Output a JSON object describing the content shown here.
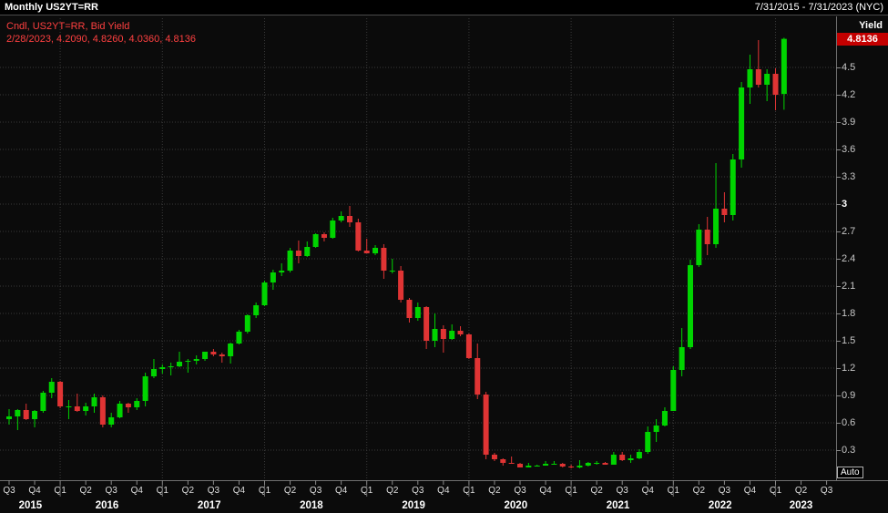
{
  "title_bar": {
    "title": "Monthly US2YT=RR",
    "date_range": "7/31/2015 - 7/31/2023 (NYC)"
  },
  "legend": {
    "line1": "Cndl, US2YT=RR, Bid Yield",
    "line2": "2/28/2023, 4.2090, 4.8260, 4.0360, 4.8136"
  },
  "y_axis": {
    "label": "Yield",
    "last_price": "4.8136",
    "ticks": [
      4.5,
      4.2,
      3.9,
      3.6,
      3.3,
      3,
      2.7,
      2.4,
      2.1,
      1.8,
      1.5,
      1.2,
      0.9,
      0.6,
      0.3
    ],
    "auto_label": "Auto"
  },
  "x_axis": {
    "quarter_labels": [
      "Q3",
      "Q4",
      "Q1",
      "Q2",
      "Q3",
      "Q4",
      "Q1",
      "Q2",
      "Q3",
      "Q4",
      "Q1",
      "Q2",
      "Q3",
      "Q4",
      "Q1",
      "Q2",
      "Q3",
      "Q4",
      "Q1",
      "Q2",
      "Q3",
      "Q4",
      "Q1",
      "Q2",
      "Q3",
      "Q4",
      "Q1",
      "Q2",
      "Q3",
      "Q4",
      "Q1",
      "Q2",
      "Q3"
    ],
    "years": [
      "2015",
      "2016",
      "2017",
      "2018",
      "2019",
      "2020",
      "2021",
      "2022",
      "2023"
    ]
  },
  "colors": {
    "background": "#0b0b0b",
    "topbar_bg": "#000000",
    "up": "#00d400",
    "down": "#e03434",
    "legend_text": "#ff4040",
    "grid": "#3a3a3a",
    "axis_line": "#707070",
    "tick_color": "#8a8a8a",
    "badge_bg": "#c40000",
    "quarter_text": "#dddddd",
    "year_text": "#ffffff"
  },
  "chart_data": {
    "type": "candlestick",
    "title": "Monthly US2YT=RR",
    "symbol": "US2YT=RR",
    "field": "Bid Yield",
    "interval": "monthly",
    "start_month": "2015-07",
    "end_month": "2023-02",
    "axis_end_month": "2023-09",
    "ylabel": "Yield",
    "ylim_visible": [
      0.05,
      4.95
    ],
    "last_candle": {
      "date": "2/28/2023",
      "open": 4.209,
      "high": 4.826,
      "low": 4.036,
      "close": 4.8136
    },
    "ohlc": [
      [
        0.64,
        0.75,
        0.58,
        0.67
      ],
      [
        0.67,
        0.75,
        0.52,
        0.74
      ],
      [
        0.74,
        0.81,
        0.63,
        0.64
      ],
      [
        0.64,
        0.74,
        0.55,
        0.73
      ],
      [
        0.73,
        0.95,
        0.71,
        0.93
      ],
      [
        0.93,
        1.09,
        0.87,
        1.05
      ],
      [
        1.05,
        1.06,
        0.76,
        0.78
      ],
      [
        0.78,
        0.85,
        0.64,
        0.78
      ],
      [
        0.78,
        0.92,
        0.72,
        0.73
      ],
      [
        0.73,
        0.82,
        0.68,
        0.78
      ],
      [
        0.78,
        0.92,
        0.71,
        0.88
      ],
      [
        0.88,
        0.9,
        0.55,
        0.58
      ],
      [
        0.58,
        0.71,
        0.55,
        0.66
      ],
      [
        0.66,
        0.84,
        0.65,
        0.81
      ],
      [
        0.81,
        0.82,
        0.71,
        0.77
      ],
      [
        0.77,
        0.87,
        0.74,
        0.84
      ],
      [
        0.84,
        1.15,
        0.78,
        1.11
      ],
      [
        1.11,
        1.3,
        1.09,
        1.19
      ],
      [
        1.19,
        1.24,
        1.14,
        1.21
      ],
      [
        1.21,
        1.26,
        1.12,
        1.22
      ],
      [
        1.22,
        1.38,
        1.21,
        1.27
      ],
      [
        1.27,
        1.3,
        1.15,
        1.28
      ],
      [
        1.28,
        1.34,
        1.24,
        1.3
      ],
      [
        1.3,
        1.38,
        1.28,
        1.38
      ],
      [
        1.38,
        1.41,
        1.33,
        1.35
      ],
      [
        1.35,
        1.37,
        1.26,
        1.33
      ],
      [
        1.33,
        1.48,
        1.25,
        1.47
      ],
      [
        1.47,
        1.62,
        1.46,
        1.6
      ],
      [
        1.6,
        1.79,
        1.58,
        1.78
      ],
      [
        1.78,
        1.92,
        1.75,
        1.89
      ],
      [
        1.89,
        2.16,
        1.88,
        2.14
      ],
      [
        2.14,
        2.28,
        2.06,
        2.25
      ],
      [
        2.25,
        2.35,
        2.21,
        2.27
      ],
      [
        2.27,
        2.52,
        2.25,
        2.49
      ],
      [
        2.49,
        2.6,
        2.35,
        2.43
      ],
      [
        2.43,
        2.59,
        2.42,
        2.53
      ],
      [
        2.53,
        2.68,
        2.52,
        2.67
      ],
      [
        2.67,
        2.69,
        2.59,
        2.63
      ],
      [
        2.63,
        2.85,
        2.62,
        2.82
      ],
      [
        2.82,
        2.92,
        2.8,
        2.87
      ],
      [
        2.87,
        2.98,
        2.75,
        2.8
      ],
      [
        2.8,
        2.84,
        2.48,
        2.49
      ],
      [
        2.49,
        2.62,
        2.46,
        2.46
      ],
      [
        2.46,
        2.55,
        2.44,
        2.52
      ],
      [
        2.52,
        2.56,
        2.18,
        2.27
      ],
      [
        2.27,
        2.4,
        2.24,
        2.27
      ],
      [
        2.27,
        2.32,
        1.92,
        1.95
      ],
      [
        1.95,
        1.97,
        1.7,
        1.75
      ],
      [
        1.75,
        1.92,
        1.72,
        1.87
      ],
      [
        1.87,
        1.88,
        1.41,
        1.5
      ],
      [
        1.5,
        1.8,
        1.43,
        1.63
      ],
      [
        1.63,
        1.67,
        1.37,
        1.52
      ],
      [
        1.52,
        1.68,
        1.51,
        1.61
      ],
      [
        1.61,
        1.66,
        1.55,
        1.57
      ],
      [
        1.57,
        1.58,
        1.3,
        1.31
      ],
      [
        1.31,
        1.47,
        0.86,
        0.91
      ],
      [
        0.91,
        0.94,
        0.2,
        0.25
      ],
      [
        0.25,
        0.27,
        0.18,
        0.2
      ],
      [
        0.2,
        0.21,
        0.13,
        0.16
      ],
      [
        0.16,
        0.23,
        0.15,
        0.15
      ],
      [
        0.15,
        0.16,
        0.11,
        0.11
      ],
      [
        0.11,
        0.16,
        0.11,
        0.13
      ],
      [
        0.13,
        0.14,
        0.12,
        0.13
      ],
      [
        0.13,
        0.18,
        0.13,
        0.15
      ],
      [
        0.15,
        0.18,
        0.14,
        0.15
      ],
      [
        0.15,
        0.16,
        0.11,
        0.12
      ],
      [
        0.12,
        0.14,
        0.1,
        0.11
      ],
      [
        0.11,
        0.19,
        0.1,
        0.13
      ],
      [
        0.13,
        0.17,
        0.12,
        0.16
      ],
      [
        0.16,
        0.18,
        0.14,
        0.16
      ],
      [
        0.16,
        0.17,
        0.14,
        0.14
      ],
      [
        0.14,
        0.28,
        0.14,
        0.25
      ],
      [
        0.25,
        0.28,
        0.18,
        0.19
      ],
      [
        0.19,
        0.25,
        0.16,
        0.21
      ],
      [
        0.21,
        0.31,
        0.2,
        0.28
      ],
      [
        0.28,
        0.56,
        0.26,
        0.5
      ],
      [
        0.5,
        0.64,
        0.39,
        0.57
      ],
      [
        0.57,
        0.77,
        0.56,
        0.73
      ],
      [
        0.73,
        1.22,
        0.73,
        1.18
      ],
      [
        1.18,
        1.64,
        1.11,
        1.43
      ],
      [
        1.43,
        2.39,
        1.41,
        2.33
      ],
      [
        2.33,
        2.78,
        2.31,
        2.72
      ],
      [
        2.72,
        2.86,
        2.44,
        2.56
      ],
      [
        2.56,
        3.45,
        2.52,
        2.95
      ],
      [
        2.95,
        3.13,
        2.8,
        2.88
      ],
      [
        2.88,
        3.55,
        2.82,
        3.49
      ],
      [
        3.49,
        4.34,
        3.4,
        4.28
      ],
      [
        4.28,
        4.64,
        4.1,
        4.48
      ],
      [
        4.48,
        4.8,
        4.28,
        4.31
      ],
      [
        4.31,
        4.48,
        4.13,
        4.43
      ],
      [
        4.43,
        4.49,
        4.03,
        4.2
      ],
      [
        4.209,
        4.826,
        4.036,
        4.8136
      ]
    ]
  }
}
